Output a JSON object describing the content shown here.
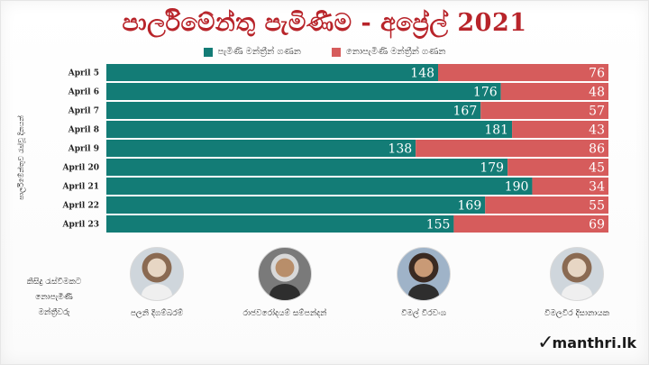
{
  "title": "පාර්ලිමේන්තු පැමිණීම - අප්‍රේල් 2021",
  "legend": [
    {
      "label": "පැමිණි මන්ත්‍රීන් ගණන",
      "color": "#137c76"
    },
    {
      "label": "නොපැමිණි මන්ත්‍රීන් ගණන",
      "color": "#d65c5c"
    }
  ],
  "ylabel": "පාර්ලිමේන්තුව රැස්වූ දිනයන්",
  "chart_data": {
    "type": "bar",
    "orientation": "horizontal",
    "stacked": true,
    "title": "පාර්ලිමේන්තු පැමිණීම - අප්‍රේල් 2021",
    "ylabel": "පාර්ලිමේන්තුව රැස්වූ දිනයන්",
    "categories": [
      "April 5",
      "April 6",
      "April 7",
      "April 8",
      "April 9",
      "April 20",
      "April 21",
      "April 22",
      "April 23"
    ],
    "series": [
      {
        "name": "පැමිණි මන්ත්‍රීන් ගණන",
        "color": "#137c76",
        "values": [
          148,
          176,
          167,
          181,
          138,
          179,
          190,
          169,
          155
        ]
      },
      {
        "name": "නොපැමිණි මන්ත්‍රීන් ගණන",
        "color": "#d65c5c",
        "values": [
          76,
          48,
          57,
          43,
          86,
          45,
          34,
          55,
          69
        ]
      }
    ],
    "xlim": [
      0,
      224
    ],
    "grid": false,
    "legend_position": "top"
  },
  "absentees": {
    "heading_lines": [
      "කිසිදු රැස්වීමකට",
      "නොපැමිණි",
      "මන්ත්‍රීවරු"
    ],
    "people": [
      {
        "name": "පලනි දිගම්බරම්",
        "icon": "person-photo"
      },
      {
        "name": "රාජවරෝදයම් සම්පන්දන්",
        "icon": "person-photo"
      },
      {
        "name": "විමල් වීරවංශ",
        "icon": "person-photo"
      },
      {
        "name": "විමලවීර දිසානායක",
        "icon": "person-photo"
      }
    ]
  },
  "brand": {
    "check": "✓",
    "text": "manthri.lk"
  }
}
